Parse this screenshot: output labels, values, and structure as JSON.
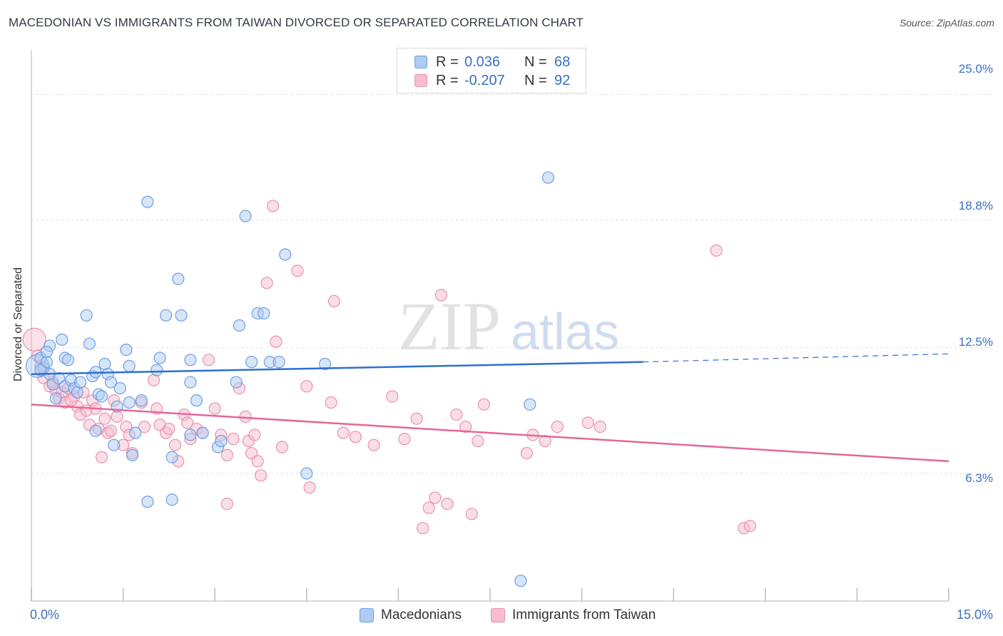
{
  "header": {
    "title": "MACEDONIAN VS IMMIGRANTS FROM TAIWAN DIVORCED OR SEPARATED CORRELATION CHART",
    "source": "Source: ZipAtlas.com"
  },
  "legend_top": {
    "rows": [
      {
        "r_label": "R =",
        "r_value": "0.036",
        "n_label": "N =",
        "n_value": "68"
      },
      {
        "r_label": "R =",
        "r_value": "-0.207",
        "n_label": "N =",
        "n_value": "92"
      }
    ]
  },
  "legend_bottom": {
    "items": [
      "Macedonians",
      "Immigrants from Taiwan"
    ]
  },
  "axes": {
    "ylabel": "Divorced or Separated",
    "x_min_label": "0.0%",
    "x_max_label": "15.0%",
    "y_tick_labels": [
      "25.0%",
      "18.8%",
      "12.5%",
      "6.3%"
    ]
  },
  "watermark": {
    "part1": "ZIP",
    "part2": "atlas"
  },
  "colors": {
    "blue_fill": "#aecbf2",
    "blue_stroke": "#6f9fe0",
    "blue_line": "#2f6fcf",
    "pink_fill": "#f6bdd0",
    "pink_stroke": "#e990ae",
    "pink_line": "#e4679a",
    "tick_text": "#3a6fc4"
  },
  "chart_data": {
    "type": "scatter",
    "title": "MACEDONIAN VS IMMIGRANTS FROM TAIWAN DIVORCED OR SEPARATED CORRELATION CHART",
    "xlabel": "",
    "ylabel": "Divorced or Separated",
    "xlim": [
      0,
      15
    ],
    "ylim": [
      0,
      27.2
    ],
    "y_ticks": [
      6.3,
      12.5,
      18.8,
      25.0
    ],
    "grid": true,
    "legend": "top-center",
    "series": [
      {
        "name": "Macedonians",
        "r": 0.036,
        "n": 68,
        "trend": {
          "x": [
            0,
            10
          ],
          "y": [
            11.2,
            11.8
          ],
          "dashed_to": [
            15,
            12.2
          ]
        },
        "points": [
          [
            0.1,
            11.6
          ],
          [
            0.15,
            12.0
          ],
          [
            0.2,
            11.5
          ],
          [
            0.25,
            11.8
          ],
          [
            0.3,
            12.6
          ],
          [
            0.3,
            11.2
          ],
          [
            0.35,
            10.7
          ],
          [
            0.4,
            10.0
          ],
          [
            0.45,
            11.0
          ],
          [
            0.5,
            12.9
          ],
          [
            0.55,
            12.0
          ],
          [
            0.55,
            10.6
          ],
          [
            0.65,
            10.9
          ],
          [
            0.7,
            10.5
          ],
          [
            0.75,
            10.3
          ],
          [
            0.8,
            10.8
          ],
          [
            0.9,
            14.1
          ],
          [
            0.95,
            12.7
          ],
          [
            1.0,
            11.1
          ],
          [
            1.05,
            11.3
          ],
          [
            1.1,
            10.2
          ],
          [
            1.15,
            10.1
          ],
          [
            1.2,
            11.7
          ],
          [
            1.25,
            11.2
          ],
          [
            1.3,
            10.8
          ],
          [
            1.35,
            7.7
          ],
          [
            1.4,
            9.6
          ],
          [
            1.45,
            10.5
          ],
          [
            1.55,
            12.4
          ],
          [
            1.6,
            11.6
          ],
          [
            1.65,
            7.2
          ],
          [
            1.7,
            8.3
          ],
          [
            1.8,
            9.9
          ],
          [
            1.9,
            19.7
          ],
          [
            1.9,
            4.9
          ],
          [
            2.05,
            11.4
          ],
          [
            2.1,
            12.0
          ],
          [
            2.2,
            14.1
          ],
          [
            2.3,
            7.1
          ],
          [
            2.3,
            5.0
          ],
          [
            2.4,
            15.9
          ],
          [
            2.45,
            14.1
          ],
          [
            2.6,
            11.9
          ],
          [
            2.6,
            10.8
          ],
          [
            2.7,
            9.9
          ],
          [
            2.8,
            8.3
          ],
          [
            3.05,
            7.6
          ],
          [
            3.35,
            10.8
          ],
          [
            3.4,
            13.6
          ],
          [
            3.5,
            19.0
          ],
          [
            3.6,
            11.8
          ],
          [
            3.7,
            14.2
          ],
          [
            3.8,
            14.2
          ],
          [
            3.9,
            11.8
          ],
          [
            4.05,
            11.8
          ],
          [
            4.15,
            17.1
          ],
          [
            4.5,
            6.3
          ],
          [
            4.8,
            11.7
          ],
          [
            8.15,
            9.7
          ],
          [
            8.45,
            20.9
          ],
          [
            8.0,
            1.0
          ],
          [
            0.25,
            12.3
          ],
          [
            0.6,
            11.9
          ],
          [
            1.05,
            8.4
          ],
          [
            1.6,
            9.8
          ],
          [
            2.6,
            8.2
          ],
          [
            3.1,
            7.9
          ],
          [
            0.15,
            11.4
          ]
        ]
      },
      {
        "name": "Immigrants from Taiwan",
        "r": -0.207,
        "n": 92,
        "trend": {
          "x": [
            0,
            15
          ],
          "y": [
            9.7,
            6.9
          ]
        },
        "points": [
          [
            0.05,
            12.9
          ],
          [
            0.1,
            12.1
          ],
          [
            0.15,
            11.6
          ],
          [
            0.2,
            11.0
          ],
          [
            0.3,
            10.6
          ],
          [
            0.4,
            10.4
          ],
          [
            0.45,
            10.0
          ],
          [
            0.5,
            10.3
          ],
          [
            0.55,
            9.8
          ],
          [
            0.6,
            10.5
          ],
          [
            0.7,
            10.1
          ],
          [
            0.75,
            9.6
          ],
          [
            0.8,
            9.2
          ],
          [
            0.85,
            10.3
          ],
          [
            0.9,
            9.4
          ],
          [
            0.95,
            8.7
          ],
          [
            1.0,
            9.9
          ],
          [
            1.05,
            9.5
          ],
          [
            1.1,
            8.5
          ],
          [
            1.2,
            9.0
          ],
          [
            1.25,
            8.3
          ],
          [
            1.3,
            8.4
          ],
          [
            1.35,
            9.9
          ],
          [
            1.4,
            9.1
          ],
          [
            1.5,
            7.7
          ],
          [
            1.55,
            8.6
          ],
          [
            1.6,
            8.2
          ],
          [
            1.65,
            7.3
          ],
          [
            1.8,
            9.8
          ],
          [
            1.85,
            8.6
          ],
          [
            2.0,
            10.9
          ],
          [
            2.05,
            9.5
          ],
          [
            2.1,
            8.7
          ],
          [
            2.2,
            8.3
          ],
          [
            2.25,
            8.5
          ],
          [
            2.35,
            7.7
          ],
          [
            2.5,
            9.2
          ],
          [
            2.55,
            8.8
          ],
          [
            2.6,
            8.0
          ],
          [
            2.7,
            8.5
          ],
          [
            2.8,
            8.3
          ],
          [
            2.9,
            11.9
          ],
          [
            3.0,
            9.5
          ],
          [
            3.1,
            8.2
          ],
          [
            3.2,
            7.2
          ],
          [
            3.3,
            8.0
          ],
          [
            3.4,
            10.5
          ],
          [
            3.5,
            9.1
          ],
          [
            3.55,
            7.9
          ],
          [
            3.6,
            7.3
          ],
          [
            3.7,
            6.9
          ],
          [
            3.75,
            6.2
          ],
          [
            3.85,
            15.7
          ],
          [
            3.95,
            19.5
          ],
          [
            4.0,
            12.8
          ],
          [
            4.1,
            7.6
          ],
          [
            4.35,
            16.3
          ],
          [
            4.5,
            10.6
          ],
          [
            4.55,
            5.6
          ],
          [
            4.9,
            9.8
          ],
          [
            4.95,
            14.8
          ],
          [
            5.1,
            8.3
          ],
          [
            5.3,
            8.1
          ],
          [
            5.6,
            7.7
          ],
          [
            5.9,
            10.1
          ],
          [
            6.1,
            8.0
          ],
          [
            6.3,
            9.0
          ],
          [
            6.4,
            3.6
          ],
          [
            6.5,
            4.6
          ],
          [
            6.6,
            5.1
          ],
          [
            6.7,
            15.1
          ],
          [
            6.8,
            4.8
          ],
          [
            6.95,
            9.2
          ],
          [
            7.1,
            8.6
          ],
          [
            7.2,
            4.3
          ],
          [
            7.3,
            7.9
          ],
          [
            7.4,
            9.7
          ],
          [
            8.1,
            7.3
          ],
          [
            8.2,
            8.2
          ],
          [
            8.4,
            7.9
          ],
          [
            8.6,
            8.6
          ],
          [
            9.1,
            8.8
          ],
          [
            9.3,
            8.6
          ],
          [
            11.2,
            17.3
          ],
          [
            11.65,
            3.6
          ],
          [
            11.75,
            3.7
          ],
          [
            0.35,
            10.8
          ],
          [
            0.65,
            9.9
          ],
          [
            1.15,
            7.1
          ],
          [
            2.4,
            6.9
          ],
          [
            3.2,
            4.8
          ],
          [
            3.65,
            8.2
          ]
        ]
      }
    ]
  }
}
